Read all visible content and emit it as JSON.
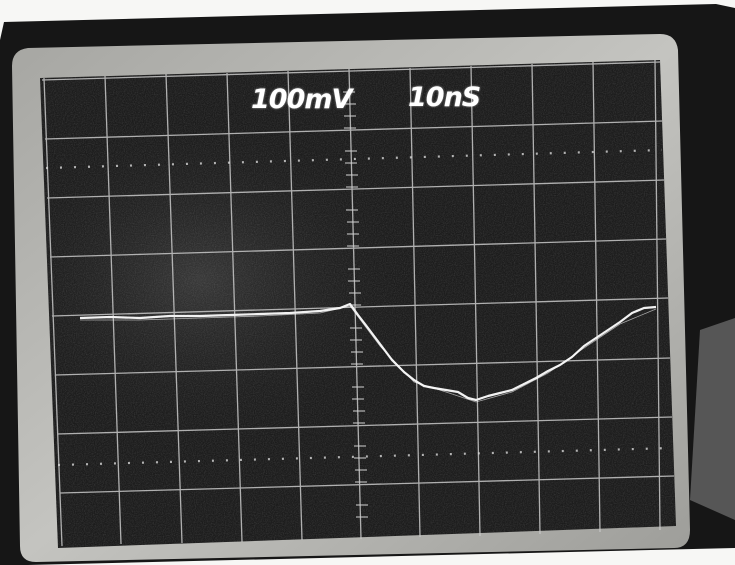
{
  "scope": {
    "volts_per_div": "100mV",
    "time_per_div": "10nS",
    "colors": {
      "screen": "#1c1c1c",
      "bezel": "#b9b9b5",
      "grid": "#c9c9c9",
      "trace": "#f2f2f2"
    }
  }
}
